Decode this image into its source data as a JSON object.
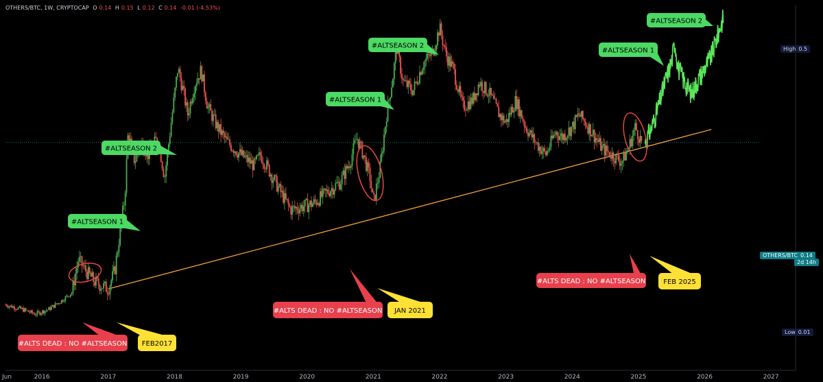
{
  "header": {
    "symbol": "OTHERS/BTC, 1W, CRYPTOCAP",
    "open_label": "O",
    "open_value": "0.14",
    "high_label": "H",
    "high_value": "0.15",
    "low_label": "L",
    "low_value": "0.12",
    "close_label": "C",
    "close_value": "0.14",
    "change": "-0.01 (-4.53%)"
  },
  "price_scale": {
    "high_label": "High",
    "high_value": "0.5",
    "low_label": "Low",
    "low_value": "0.01",
    "last_label": "OTHERS/BTC",
    "last_value": "0.14",
    "countdown": "2d 14h"
  },
  "colors": {
    "bull": "#4caf50",
    "bear": "#ef5350",
    "trendline": "#f7a23b",
    "green_callout": "#4cd964",
    "red_callout": "#e8404c",
    "yellow_callout": "#ffe135",
    "ellipse": "#e84545",
    "projection": "#5ae65a"
  },
  "chart_data": {
    "type": "candlestick",
    "title": "OTHERS/BTC, 1W, CRYPTOCAP",
    "x_ticks": [
      "Jun",
      "2016",
      "2017",
      "2018",
      "2019",
      "2020",
      "2021",
      "2022",
      "2023",
      "2024",
      "2025",
      "2026",
      "2027"
    ],
    "y_scale": "log",
    "ylim": [
      0.008,
      0.7
    ],
    "trendline": {
      "from": [
        2017.0,
        0.022
      ],
      "to": [
        2026.1,
        0.165
      ]
    },
    "price_path": [
      [
        2015.45,
        0.018
      ],
      [
        2015.7,
        0.017
      ],
      [
        2015.9,
        0.016
      ],
      [
        2016.1,
        0.017
      ],
      [
        2016.3,
        0.019
      ],
      [
        2016.45,
        0.021
      ],
      [
        2016.55,
        0.032
      ],
      [
        2016.65,
        0.028
      ],
      [
        2016.8,
        0.024
      ],
      [
        2017.0,
        0.022
      ],
      [
        2017.1,
        0.028
      ],
      [
        2017.25,
        0.07
      ],
      [
        2017.3,
        0.16
      ],
      [
        2017.4,
        0.11
      ],
      [
        2017.5,
        0.14
      ],
      [
        2017.6,
        0.12
      ],
      [
        2017.75,
        0.15
      ],
      [
        2017.85,
        0.09
      ],
      [
        2017.95,
        0.18
      ],
      [
        2018.05,
        0.36
      ],
      [
        2018.12,
        0.28
      ],
      [
        2018.2,
        0.2
      ],
      [
        2018.3,
        0.29
      ],
      [
        2018.4,
        0.35
      ],
      [
        2018.5,
        0.22
      ],
      [
        2018.65,
        0.17
      ],
      [
        2018.8,
        0.14
      ],
      [
        2019.0,
        0.12
      ],
      [
        2019.2,
        0.105
      ],
      [
        2019.3,
        0.12
      ],
      [
        2019.45,
        0.095
      ],
      [
        2019.6,
        0.075
      ],
      [
        2019.75,
        0.06
      ],
      [
        2019.9,
        0.062
      ],
      [
        2020.1,
        0.065
      ],
      [
        2020.3,
        0.075
      ],
      [
        2020.5,
        0.085
      ],
      [
        2020.65,
        0.11
      ],
      [
        2020.75,
        0.15
      ],
      [
        2020.85,
        0.12
      ],
      [
        2020.95,
        0.09
      ],
      [
        2021.0,
        0.065
      ],
      [
        2021.1,
        0.1
      ],
      [
        2021.2,
        0.2
      ],
      [
        2021.3,
        0.33
      ],
      [
        2021.35,
        0.47
      ],
      [
        2021.45,
        0.3
      ],
      [
        2021.6,
        0.27
      ],
      [
        2021.75,
        0.38
      ],
      [
        2021.9,
        0.44
      ],
      [
        2022.0,
        0.6
      ],
      [
        2022.1,
        0.42
      ],
      [
        2022.2,
        0.36
      ],
      [
        2022.35,
        0.22
      ],
      [
        2022.5,
        0.24
      ],
      [
        2022.6,
        0.3
      ],
      [
        2022.75,
        0.26
      ],
      [
        2022.9,
        0.2
      ],
      [
        2023.0,
        0.18
      ],
      [
        2023.15,
        0.24
      ],
      [
        2023.3,
        0.17
      ],
      [
        2023.45,
        0.14
      ],
      [
        2023.6,
        0.12
      ],
      [
        2023.75,
        0.16
      ],
      [
        2023.85,
        0.15
      ],
      [
        2024.0,
        0.17
      ],
      [
        2024.1,
        0.2
      ],
      [
        2024.2,
        0.18
      ],
      [
        2024.3,
        0.16
      ],
      [
        2024.45,
        0.13
      ],
      [
        2024.6,
        0.12
      ],
      [
        2024.75,
        0.11
      ],
      [
        2024.85,
        0.13
      ],
      [
        2024.95,
        0.17
      ],
      [
        2025.05,
        0.14
      ]
    ],
    "projection_path": [
      [
        2025.1,
        0.14
      ],
      [
        2025.2,
        0.17
      ],
      [
        2025.3,
        0.22
      ],
      [
        2025.4,
        0.3
      ],
      [
        2025.5,
        0.39
      ],
      [
        2025.55,
        0.5
      ],
      [
        2025.6,
        0.36
      ],
      [
        2025.7,
        0.3
      ],
      [
        2025.8,
        0.26
      ],
      [
        2025.9,
        0.31
      ],
      [
        2026.0,
        0.36
      ],
      [
        2026.1,
        0.42
      ],
      [
        2026.2,
        0.55
      ],
      [
        2026.28,
        0.68
      ]
    ],
    "annotations": {
      "green": [
        {
          "text": "#ALTSEASON 1",
          "x": 2017.2
        },
        {
          "text": "#ALTSEASON 2",
          "x": 2018.0
        },
        {
          "text": "#ALTSEASON 1",
          "x": 2021.3
        },
        {
          "text": "#ALTSEASON 2",
          "x": 2022.0
        },
        {
          "text": "#ALTSEASON 1",
          "x": 2025.4
        },
        {
          "text": "#ALTSEASON 2",
          "x": 2026.2
        }
      ],
      "red": [
        {
          "text": "#ALTS DEAD : NO #ALTSEASON",
          "x": 2016.7
        },
        {
          "text": "#ALTS DEAD : NO #ALTSEASON",
          "x": 2020.9
        },
        {
          "text": "#ALTS DEAD : NO #ALTSEASON",
          "x": 2024.9
        }
      ],
      "yellow": [
        {
          "text": "FEB2017",
          "x": 2017.1
        },
        {
          "text": "JAN 2021",
          "x": 2021.05
        },
        {
          "text": "FEB 2025",
          "x": 2025.1
        }
      ]
    }
  }
}
